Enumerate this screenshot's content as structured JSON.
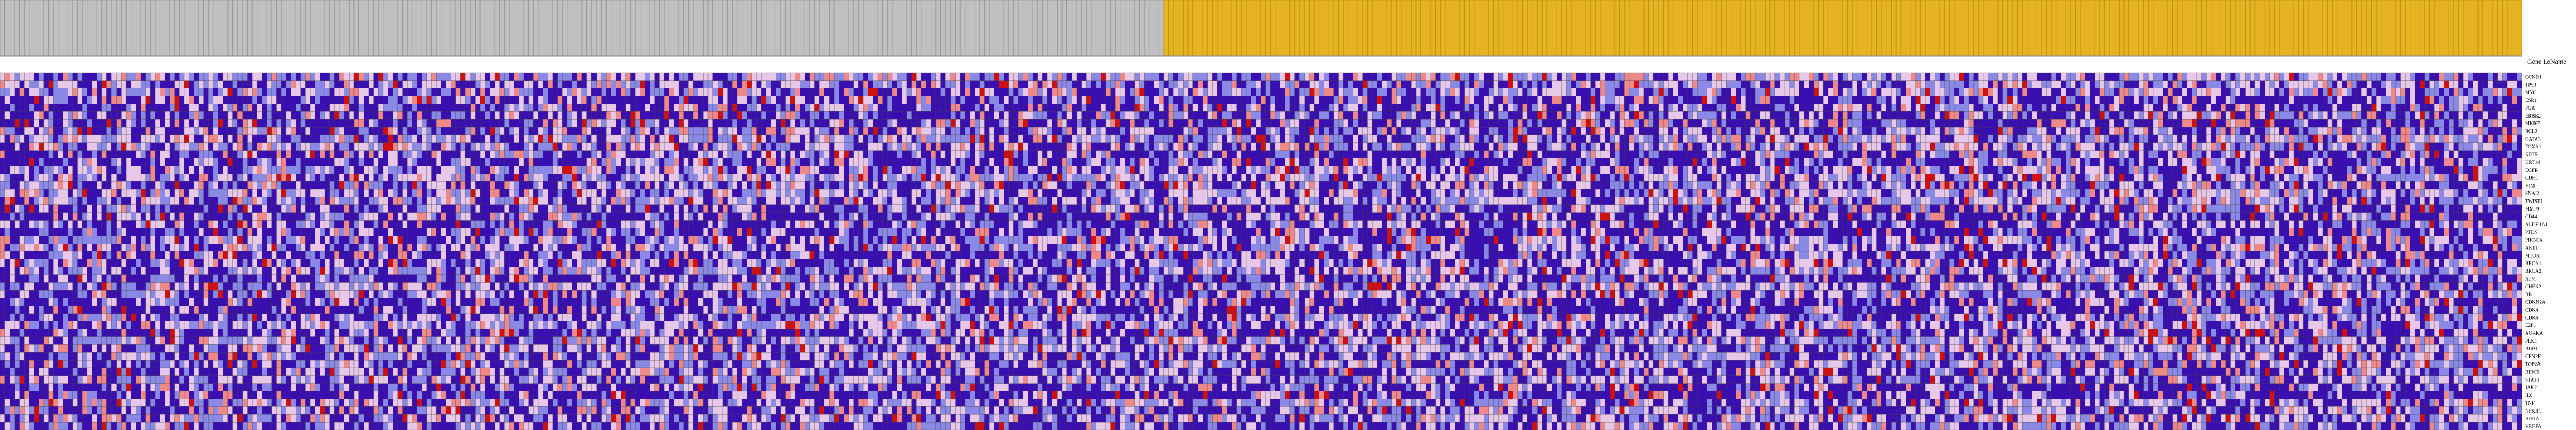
{
  "chart_data": {
    "type": "heatmap",
    "title": "",
    "xlabel": "",
    "ylabel": "",
    "row_header": "Gene LeName",
    "sample_groups": [
      {
        "name": "",
        "count": 240,
        "color": "#c0c0c0"
      },
      {
        "name": "",
        "count": 280,
        "color": "#e6b422"
      }
    ],
    "rows": [
      "CCND1",
      "TP53",
      "MYC",
      "ESR1",
      "PGR",
      "ERBB2",
      "MKI67",
      "BCL2",
      "GATA3",
      "FOXA1",
      "KRT5",
      "KRT14",
      "EGFR",
      "CDH1",
      "VIM",
      "SNAI2",
      "TWIST1",
      "MMP9",
      "CD44",
      "ALDH1A1",
      "PTEN",
      "PIK3CA",
      "AKT1",
      "MTOR",
      "BRCA1",
      "BRCA2",
      "ATM",
      "CHEK2",
      "RB1",
      "CDKN2A",
      "CDK4",
      "CDK6",
      "E2F1",
      "AURKA",
      "PLK1",
      "BUB1",
      "CENPF",
      "TOP2A",
      "BIRC5",
      "STAT3",
      "JAK2",
      "IL6",
      "TNF",
      "NFKB1",
      "HIF1A",
      "VEGFA"
    ],
    "color_scale": {
      "low": "#3a0fb0",
      "mid_low": "#8a8ae6",
      "mid": "#e8c8e8",
      "mid_high": "#ef8888",
      "high": "#d01010"
    },
    "value_range": [
      0,
      4
    ],
    "matrix_seed": 1337
  }
}
